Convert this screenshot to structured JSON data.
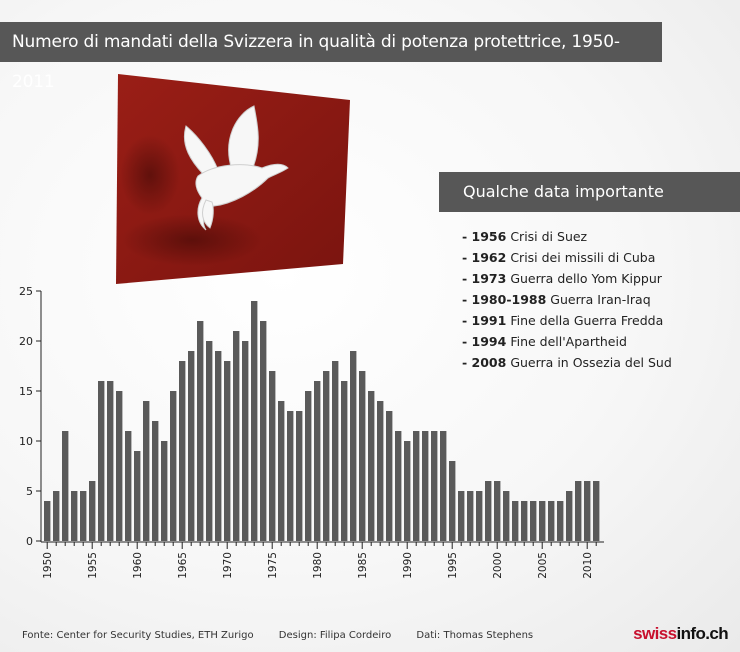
{
  "title": "Numero di mandati della Svizzera in qualità di potenza protettrice, 1950-2011",
  "dates_header": "Qualche data importante",
  "dates": [
    {
      "year": "- 1956",
      "event": "Crisi di Suez"
    },
    {
      "year": "- 1962",
      "event": "Crisi dei missili di Cuba"
    },
    {
      "year": "- 1973",
      "event": "Guerra dello Yom Kippur"
    },
    {
      "year": "- 1980-1988",
      "event": "Guerra Iran-Iraq"
    },
    {
      "year": "- 1991",
      "event": "Fine della Guerra Fredda"
    },
    {
      "year": "- 1994",
      "event": "Fine dell'Apartheid"
    },
    {
      "year": "- 2008",
      "event": "Guerra in Ossezia del Sud"
    }
  ],
  "footer": {
    "source": "Fonte: Center for Security Studies, ETH Zurigo",
    "design": "Design: Filipa Cordeiro",
    "data": "Dati: Thomas Stephens"
  },
  "brand": {
    "part1": "swiss",
    "part2": "info.ch"
  },
  "colors": {
    "bar": "#5a5a5a",
    "header": "#575757",
    "flag": "#8b1a14",
    "brand": "#c8102e"
  },
  "illustration": "dove-on-red-flag",
  "chart_data": {
    "type": "bar",
    "x": [
      1950,
      1951,
      1952,
      1953,
      1954,
      1955,
      1956,
      1957,
      1958,
      1959,
      1960,
      1961,
      1962,
      1963,
      1964,
      1965,
      1966,
      1967,
      1968,
      1969,
      1970,
      1971,
      1972,
      1973,
      1974,
      1975,
      1976,
      1977,
      1978,
      1979,
      1980,
      1981,
      1982,
      1983,
      1984,
      1985,
      1986,
      1987,
      1988,
      1989,
      1990,
      1991,
      1992,
      1993,
      1994,
      1995,
      1996,
      1997,
      1998,
      1999,
      2000,
      2001,
      2002,
      2003,
      2004,
      2005,
      2006,
      2007,
      2008,
      2009,
      2010,
      2011
    ],
    "values": [
      4,
      5,
      11,
      5,
      5,
      6,
      16,
      16,
      15,
      11,
      9,
      14,
      12,
      10,
      15,
      18,
      19,
      22,
      20,
      19,
      18,
      21,
      20,
      24,
      22,
      17,
      14,
      13,
      13,
      15,
      16,
      17,
      18,
      16,
      19,
      17,
      15,
      14,
      13,
      11,
      10,
      11,
      11,
      11,
      11,
      8,
      5,
      5,
      5,
      6,
      6,
      5,
      4,
      4,
      4,
      4,
      4,
      4,
      5,
      6,
      6,
      6
    ],
    "x_tick_labels": [
      "1950",
      "1955",
      "1960",
      "1965",
      "1970",
      "1975",
      "1980",
      "1985",
      "1990",
      "1995",
      "2000",
      "2005",
      "2010"
    ],
    "y_tick_labels": [
      "0",
      "5",
      "10",
      "15",
      "20",
      "25"
    ],
    "ylim": [
      0,
      25
    ],
    "grid": false,
    "legend": "none"
  }
}
